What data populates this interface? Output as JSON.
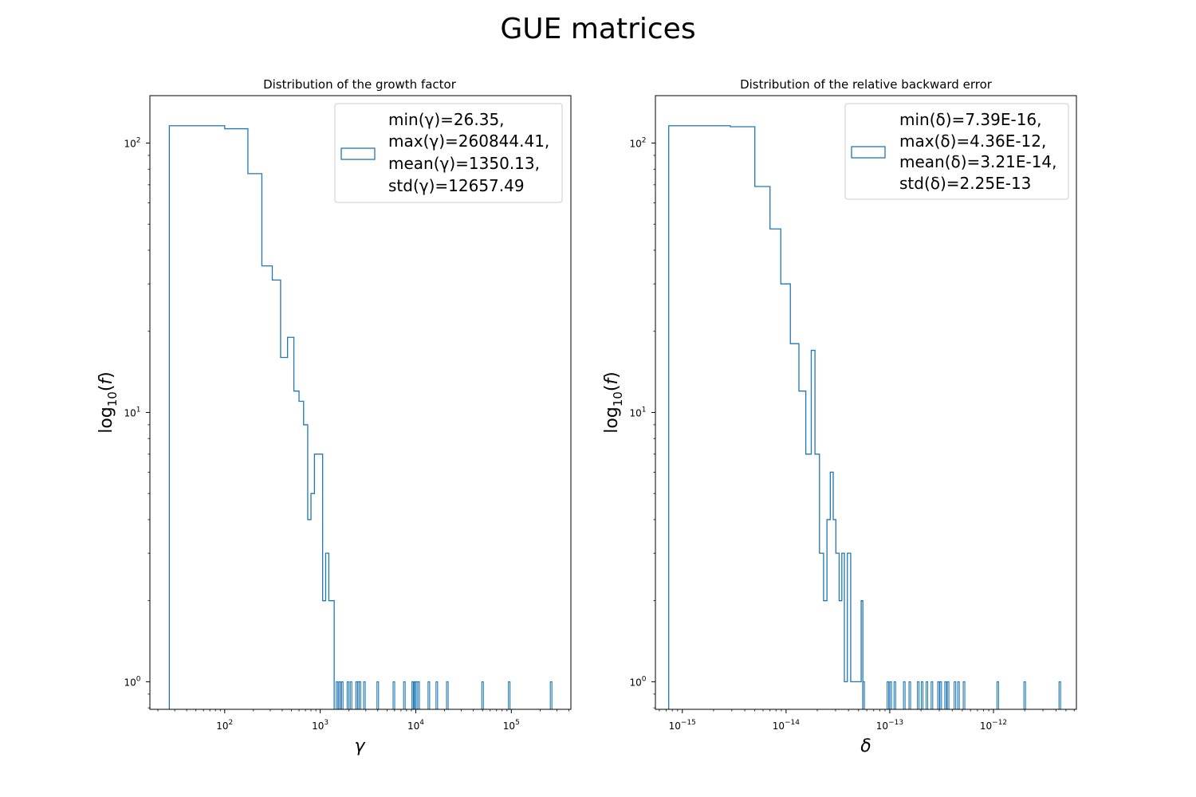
{
  "figure": {
    "title": "GUE matrices"
  },
  "chart_data": [
    {
      "type": "histogram",
      "title": "Distribution of the growth factor",
      "xlabel": "γ",
      "ylabel": "log10(f)",
      "xscale": "log",
      "yscale": "log",
      "xlim": [
        16.5,
        420000
      ],
      "ylim": [
        0.79,
        150
      ],
      "xticks": [
        {
          "value": 100,
          "base": "10",
          "exp": "2"
        },
        {
          "value": 1000,
          "base": "10",
          "exp": "3"
        },
        {
          "value": 10000,
          "base": "10",
          "exp": "4"
        },
        {
          "value": 100000,
          "base": "10",
          "exp": "5"
        }
      ],
      "yticks": [
        {
          "value": 1,
          "base": "10",
          "exp": "0"
        },
        {
          "value": 10,
          "base": "10",
          "exp": "1"
        },
        {
          "value": 100,
          "base": "10",
          "exp": "2"
        }
      ],
      "grid": false,
      "legend": {
        "placement": "upper right",
        "lines": [
          "min(γ)=26.35,",
          "max(γ)=260844.41,",
          "mean(γ)=1350.13,",
          "std(γ)=12657.49"
        ]
      },
      "color": "#1f77b4",
      "steps": [
        [
          26.35,
          116
        ],
        [
          100,
          113
        ],
        [
          175,
          77
        ],
        [
          245,
          35
        ],
        [
          315,
          31
        ],
        [
          385,
          16
        ],
        [
          455,
          19
        ],
        [
          530,
          12
        ],
        [
          600,
          11
        ],
        [
          670,
          9
        ],
        [
          740,
          4
        ],
        [
          800,
          5
        ],
        [
          870,
          7
        ],
        [
          1060,
          2
        ],
        [
          1140,
          3
        ],
        [
          1230,
          2
        ],
        [
          1400,
          0
        ]
      ],
      "singletons": [
        1500,
        1600,
        1700,
        1950,
        2100,
        2400,
        2500,
        2600,
        2900,
        4000,
        5900,
        7600,
        9300,
        9600,
        9900,
        10300,
        10700,
        13700,
        16600,
        21400,
        50000,
        95000,
        260844.41
      ]
    },
    {
      "type": "histogram",
      "title": "Distribution of the relative backward error",
      "xlabel": "δ",
      "ylabel": "log10(f)",
      "xscale": "log",
      "yscale": "log",
      "xlim": [
        5.5e-16,
        6.3e-12
      ],
      "ylim": [
        0.79,
        150
      ],
      "xticks": [
        {
          "value": 1e-15,
          "base": "10",
          "exp": "−15"
        },
        {
          "value": 1e-14,
          "base": "10",
          "exp": "−14"
        },
        {
          "value": 1e-13,
          "base": "10",
          "exp": "−13"
        },
        {
          "value": 1e-12,
          "base": "10",
          "exp": "−12"
        }
      ],
      "yticks": [
        {
          "value": 1,
          "base": "10",
          "exp": "0"
        },
        {
          "value": 10,
          "base": "10",
          "exp": "1"
        },
        {
          "value": 100,
          "base": "10",
          "exp": "2"
        }
      ],
      "grid": false,
      "legend": {
        "placement": "upper right",
        "lines": [
          "min(δ)=7.39E-16,",
          "max(δ)=4.36E-12,",
          "mean(δ)=3.21E-14,",
          "std(δ)=2.25E-13"
        ]
      },
      "color": "#1f77b4",
      "steps": [
        [
          7.39e-16,
          116
        ],
        [
          2.9e-15,
          115
        ],
        [
          5e-15,
          69
        ],
        [
          7e-15,
          48
        ],
        [
          8.9e-15,
          30
        ],
        [
          1.1e-14,
          18
        ],
        [
          1.33e-14,
          12
        ],
        [
          1.55e-14,
          7
        ],
        [
          1.75e-14,
          17
        ],
        [
          1.9e-14,
          7
        ],
        [
          2.1e-14,
          3
        ],
        [
          2.3e-14,
          2
        ],
        [
          2.48e-14,
          4
        ],
        [
          2.67e-14,
          6
        ],
        [
          2.85e-14,
          4
        ],
        [
          3.02e-14,
          3
        ],
        [
          3.25e-14,
          2
        ],
        [
          3.45e-14,
          3
        ],
        [
          3.65e-14,
          1
        ],
        [
          3.9e-14,
          3
        ],
        [
          4.2e-14,
          1
        ],
        [
          5.3e-14,
          2
        ],
        [
          5.5e-14,
          0
        ]
      ],
      "singletons": [
        5.6e-14,
        9.6e-14,
        1.02e-13,
        1.12e-13,
        1.38e-13,
        1.56e-13,
        1.88e-13,
        2.05e-13,
        2.28e-13,
        2.55e-13,
        2.95e-13,
        3.1e-13,
        3.45e-13,
        3.65e-13,
        4.25e-13,
        4.6e-13,
        5.2e-13,
        1.1e-12,
        2e-12,
        4.36e-12
      ]
    }
  ]
}
